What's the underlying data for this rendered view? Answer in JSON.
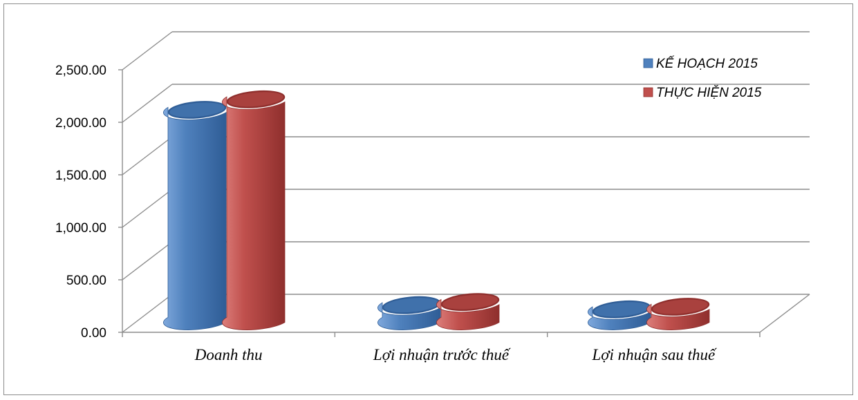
{
  "chart_data": {
    "type": "bar",
    "categories": [
      "Doanh thu",
      "Lợi nhuận trước thuế",
      "Lợi nhuận sau thuế"
    ],
    "series": [
      {
        "name": "KẾ HOẠCH 2015",
        "color": "#4f81bd",
        "dark": "#2f5d96",
        "light": "#7fa8dc",
        "values": [
          2000,
          140,
          100
        ]
      },
      {
        "name": "THỰC HIỆN 2015",
        "color": "#c0504d",
        "dark": "#8f2f2d",
        "light": "#dc7e7b",
        "values": [
          2100,
          170,
          125
        ]
      }
    ],
    "yticks": [
      "0.00",
      "500.00",
      "1,000.00",
      "1,500.00",
      "2,000.00",
      "2,500.00"
    ],
    "ylim": [
      0,
      2500
    ],
    "title": "",
    "xlabel": "",
    "ylabel": "",
    "grid": true,
    "legend_position": "top-right",
    "style": "3d-cylinder"
  }
}
